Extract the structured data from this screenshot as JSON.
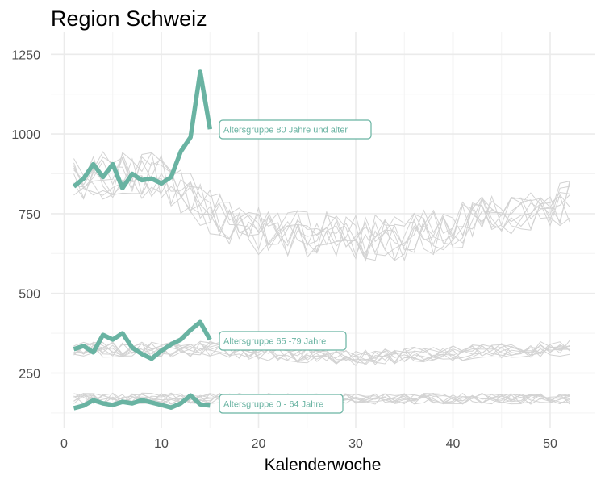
{
  "chart_data": {
    "type": "line",
    "title": "Region Schweiz",
    "xlabel": "Kalenderwoche",
    "ylabel": "",
    "xlim": [
      0,
      54
    ],
    "ylim": [
      90,
      1330
    ],
    "x_ticks": [
      0,
      10,
      20,
      30,
      40,
      50
    ],
    "y_ticks": [
      250,
      500,
      750,
      1000,
      1250
    ],
    "grid": true,
    "colors": {
      "highlight": "#69b3a2",
      "background_lines": "#d3d3d3",
      "grid": "#ebebeb"
    },
    "highlight_series": [
      {
        "name": "Altersgruppe 80 Jahre und älter",
        "x": [
          1,
          2,
          3,
          4,
          5,
          6,
          7,
          8,
          9,
          10,
          11,
          12,
          13,
          14,
          15
        ],
        "values": [
          835,
          860,
          905,
          865,
          905,
          830,
          875,
          855,
          860,
          845,
          865,
          945,
          990,
          1195,
          1015
        ]
      },
      {
        "name": "Altersgruppe 65 -79 Jahre",
        "x": [
          1,
          2,
          3,
          4,
          5,
          6,
          7,
          8,
          9,
          10,
          11,
          12,
          13,
          14,
          15
        ],
        "values": [
          325,
          335,
          315,
          370,
          355,
          375,
          330,
          310,
          295,
          320,
          340,
          355,
          385,
          410,
          355
        ]
      },
      {
        "name": "Altersgruppe 0 - 64 Jahre",
        "x": [
          1,
          2,
          3,
          4,
          5,
          6,
          7,
          8,
          9,
          10,
          11,
          12,
          13,
          14,
          15
        ],
        "values": [
          140,
          148,
          165,
          155,
          150,
          160,
          155,
          165,
          158,
          150,
          142,
          155,
          180,
          152,
          148
        ]
      }
    ],
    "background_series_note": "Previous years per age group, weeks 1–52, grey"
  }
}
